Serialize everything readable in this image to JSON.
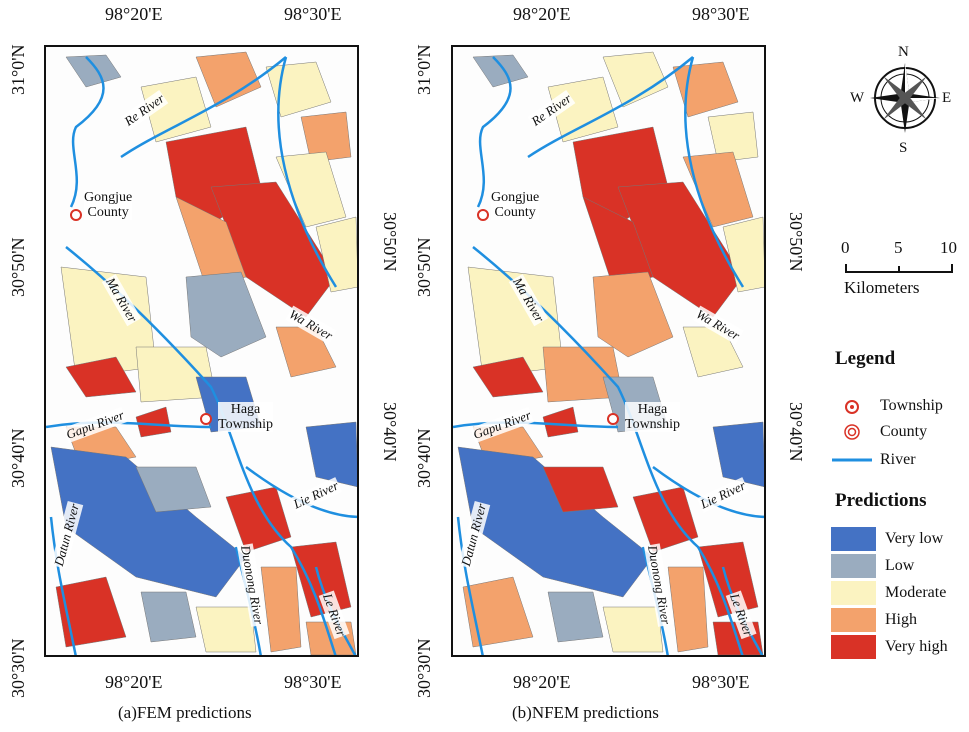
{
  "panels": [
    {
      "id": "a",
      "caption": "(a)FEM predictions"
    },
    {
      "id": "b",
      "caption": "(b)NFEM predictions"
    }
  ],
  "coords": {
    "lon_left": "98°20'E",
    "lon_right": "98°30'E",
    "lat": [
      "31°0'N",
      "30°50'N",
      "30°40'N",
      "30°30'N"
    ]
  },
  "north_arrow": {
    "n": "N",
    "s": "S",
    "e": "E",
    "w": "W"
  },
  "scale_bar": {
    "ticks": [
      "0",
      "5",
      "10"
    ],
    "unit": "Kilometers"
  },
  "legend": {
    "title": "Legend",
    "items": [
      {
        "label": "Township"
      },
      {
        "label": "County"
      },
      {
        "label": "River"
      }
    ],
    "predictions_title": "Predictions",
    "classes": [
      {
        "label": "Very low",
        "color": "#4472c4"
      },
      {
        "label": "Low",
        "color": "#9aacbf"
      },
      {
        "label": "Moderate",
        "color": "#fbf3c1"
      },
      {
        "label": "High",
        "color": "#f3a26c"
      },
      {
        "label": "Very high",
        "color": "#d93226"
      }
    ]
  },
  "rivers": {
    "re": "Re River",
    "ma": "Ma River",
    "wa": "Wa River",
    "gapu": "Gapu River",
    "lie": "Lie River",
    "datun": "Datun River",
    "duonong": "Duonong River",
    "le": "Le River"
  },
  "places": {
    "county_1": "Gongjue",
    "county_2": "County",
    "township_1": "Haga",
    "township_2": "Township"
  },
  "colors": {
    "river": "#1f8fe0"
  }
}
